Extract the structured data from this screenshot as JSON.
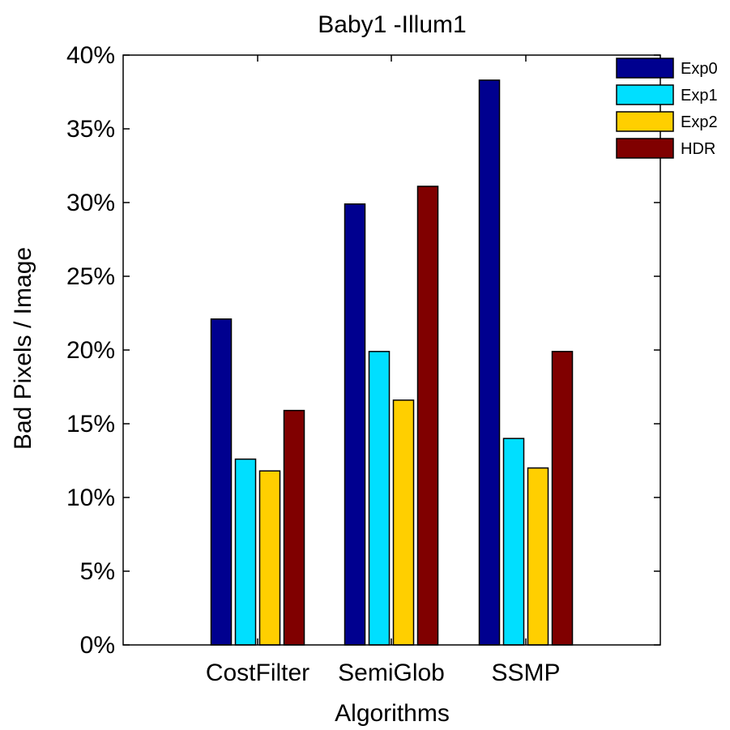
{
  "chart_data": {
    "type": "bar",
    "title": "Baby1 -Illum1",
    "xlabel": "Algorithms",
    "ylabel": "Bad Pixels / Image",
    "categories": [
      "CostFilter",
      "SemiGlob",
      "SSMP"
    ],
    "ylim": [
      0,
      40
    ],
    "yticks": [
      0,
      5,
      10,
      15,
      20,
      25,
      30,
      35,
      40
    ],
    "ytick_labels": [
      "0%",
      "5%",
      "10%",
      "15%",
      "20%",
      "25%",
      "30%",
      "35%",
      "40%"
    ],
    "grid": false,
    "legend_position": "top-right",
    "series": [
      {
        "name": "Exp0",
        "color": "#00008f",
        "values": [
          22.1,
          29.9,
          38.3
        ]
      },
      {
        "name": "Exp1",
        "color": "#00dfff",
        "values": [
          12.6,
          19.9,
          14.0
        ]
      },
      {
        "name": "Exp2",
        "color": "#ffcf00",
        "values": [
          11.8,
          16.6,
          12.0
        ]
      },
      {
        "name": "HDR",
        "color": "#800000",
        "values": [
          15.9,
          31.1,
          19.9
        ]
      }
    ]
  }
}
